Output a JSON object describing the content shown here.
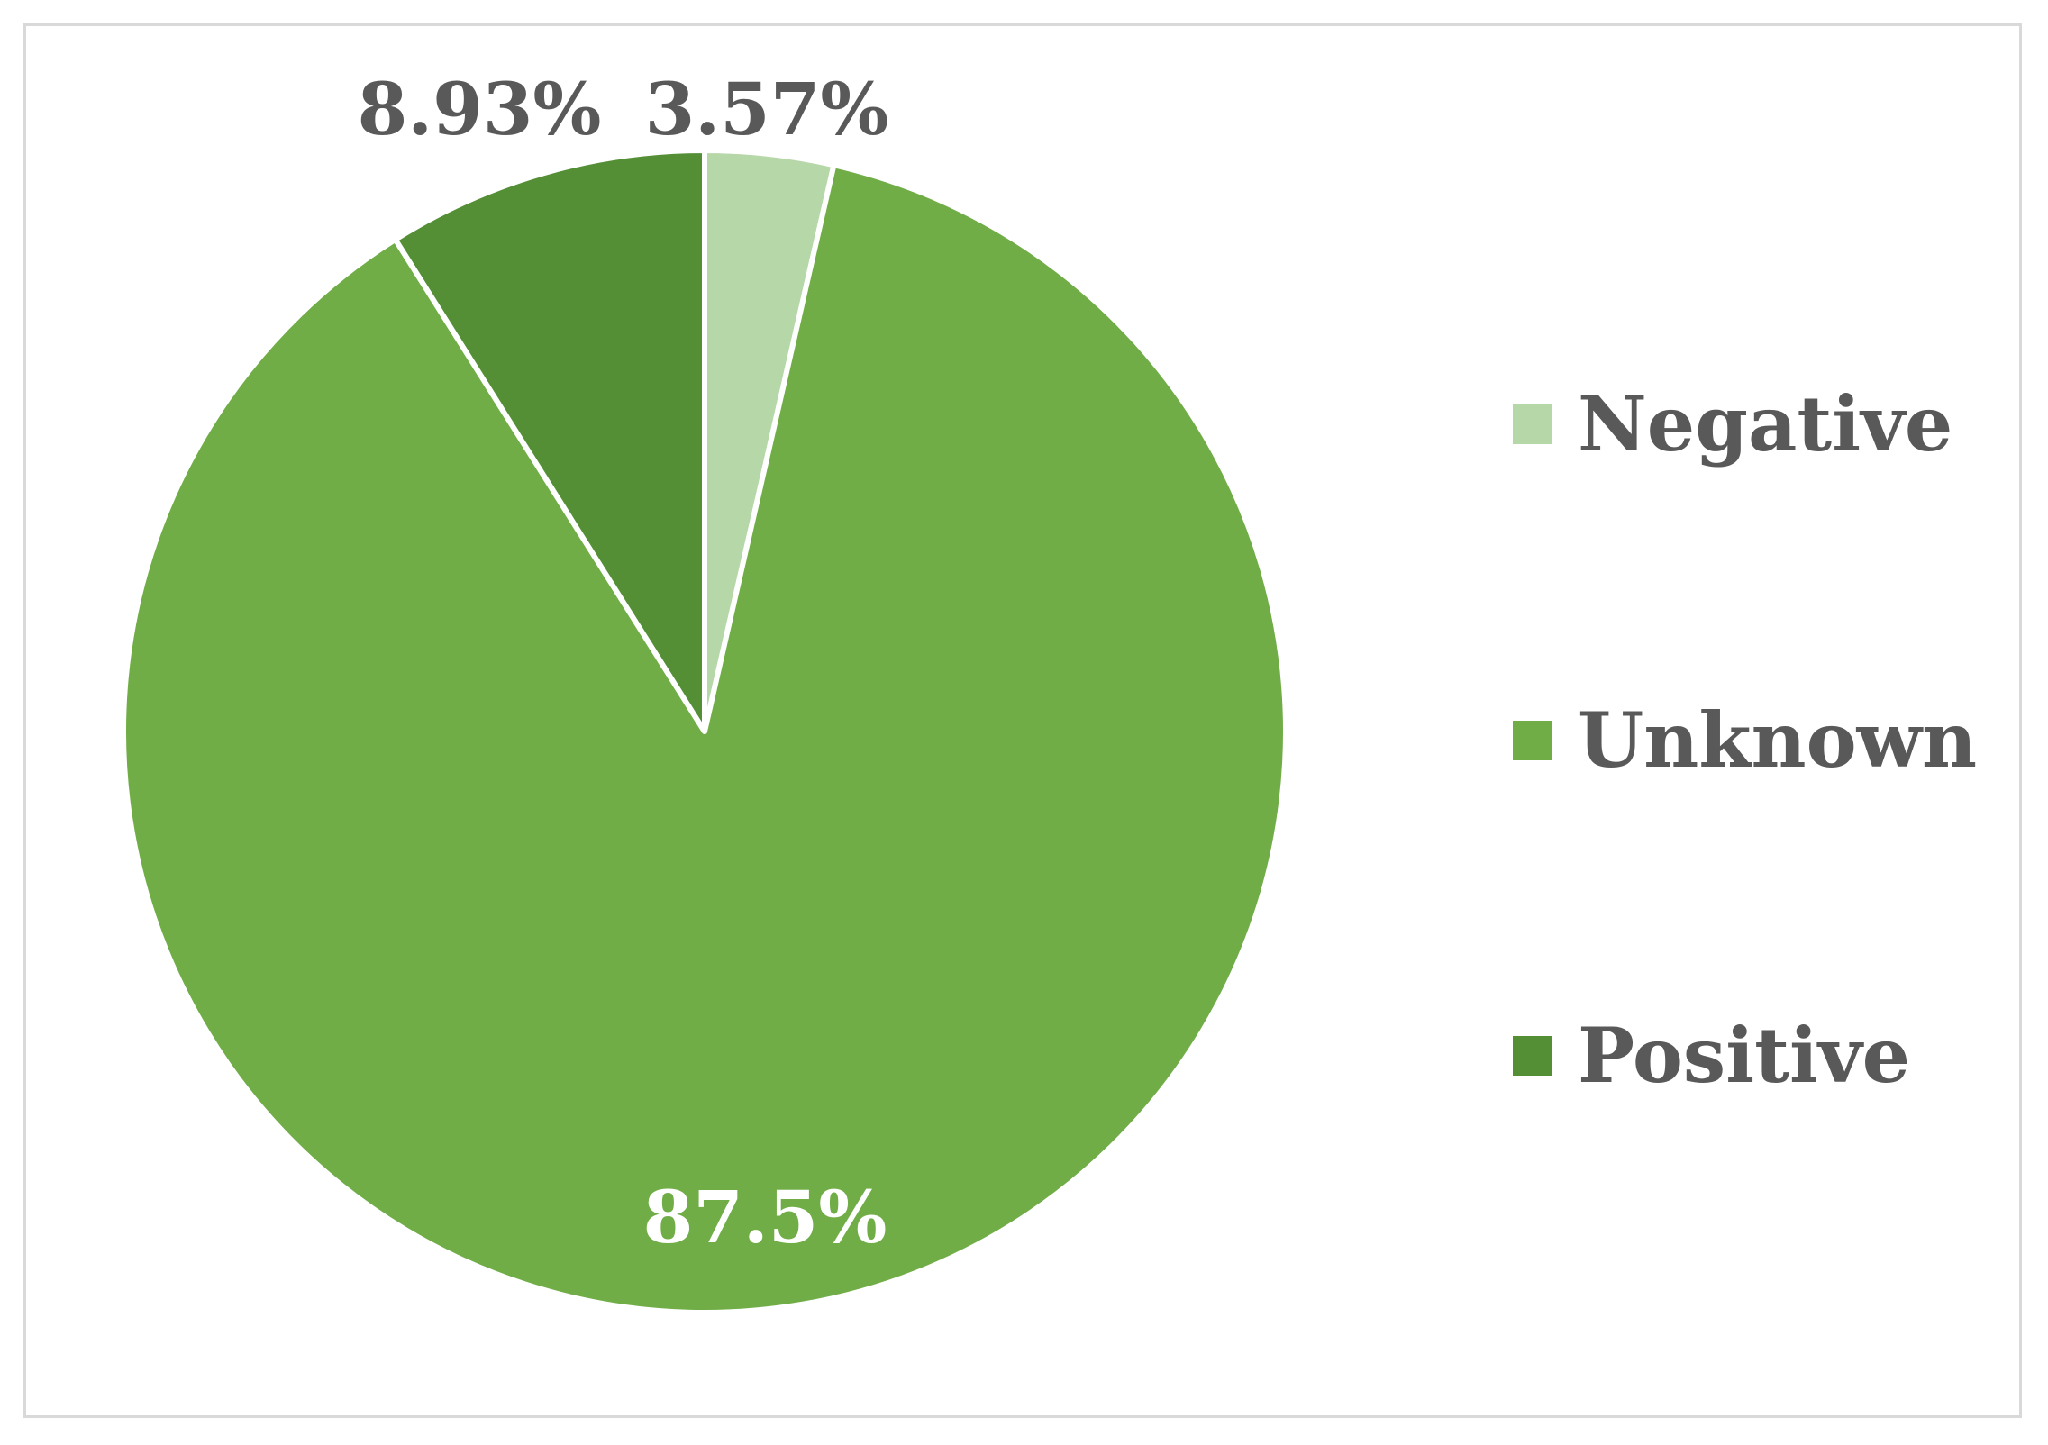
{
  "chart_data": {
    "type": "pie",
    "title": "",
    "slices": [
      {
        "label": "Negative",
        "value": 3.57,
        "data_label": "3.57%",
        "color": "#b6d7a8"
      },
      {
        "label": "Unknown",
        "value": 87.5,
        "data_label": "87.5%",
        "color": "#70ad47"
      },
      {
        "label": "Positive",
        "value": 8.93,
        "data_label": "8.93%",
        "color": "#548f36"
      }
    ],
    "start_angle_deg": 0,
    "direction": "clockwise",
    "legend_position": "right",
    "data_label_colors": {
      "Negative": "#595959",
      "Unknown": "#ffffff",
      "Positive": "#595959"
    }
  }
}
